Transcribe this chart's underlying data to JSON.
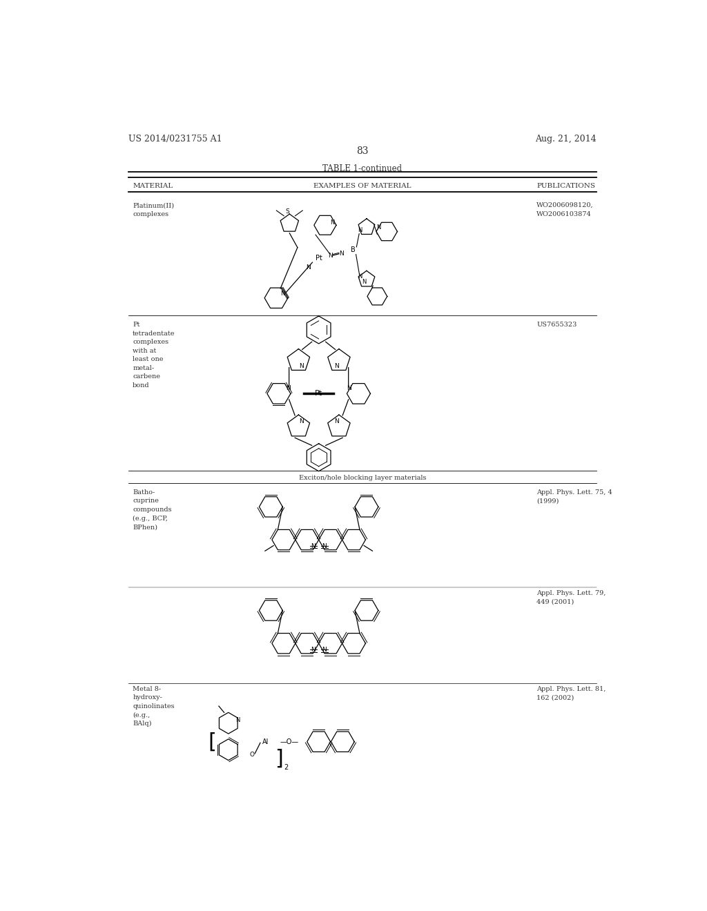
{
  "background_color": "#ffffff",
  "page_number": "83",
  "patent_left": "US 2014/0231755 A1",
  "patent_right": "Aug. 21, 2014",
  "table_title": "TABLE 1-continued",
  "col_headers": [
    "MATERIAL",
    "EXAMPLES OF MATERIAL",
    "PUBLICATIONS"
  ],
  "font_size_header": 7.5,
  "font_size_body": 7.0,
  "font_size_page": 9.0,
  "font_size_table_title": 8.5,
  "line_color": "#000000",
  "text_color": "#333333"
}
